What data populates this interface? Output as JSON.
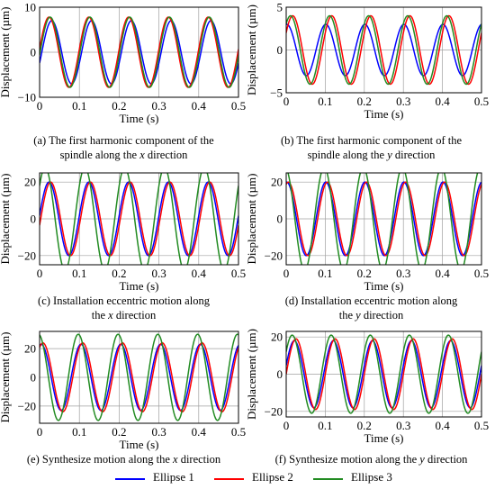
{
  "legend": [
    {
      "name": "Ellipse 1",
      "color": "#0000ff"
    },
    {
      "name": "Ellipse 2",
      "color": "#ff0000"
    },
    {
      "name": "Ellipse 3",
      "color": "#228b22"
    }
  ],
  "captions": [
    {
      "line1": "(a) The first harmonic component of the",
      "line2_pre": "spindle along the ",
      "line2_ital": "x",
      "line2_post": " direction"
    },
    {
      "line1": "(b) The first harmonic component of the",
      "line2_pre": "spindle along the ",
      "line2_ital": "y",
      "line2_post": " direction"
    },
    {
      "line1": "(c) Installation eccentric motion along",
      "line2_pre": "the ",
      "line2_ital": "x",
      "line2_post": " direction"
    },
    {
      "line1": "(d) Installation eccentric motion along",
      "line2_pre": "the ",
      "line2_ital": "y",
      "line2_post": " direction"
    },
    {
      "line1": "",
      "line2_pre": "(e) Synthesize motion along the ",
      "line2_ital": "x",
      "line2_post": " direction"
    },
    {
      "line1": "",
      "line2_pre": "(f) Synthesize motion along the ",
      "line2_ital": "y",
      "line2_post": " direction"
    }
  ],
  "chart_data": [
    {
      "type": "line",
      "id": "a",
      "xlabel": "Time (s)",
      "ylabel": "Displacement (µm)",
      "xlim": [
        0,
        0.5
      ],
      "ylim": [
        -10,
        10
      ],
      "xticks": [
        "0",
        "0.1",
        "0.2",
        "0.3",
        "0.4",
        "0.5"
      ],
      "yticks": [
        "-10",
        "0",
        "10"
      ],
      "grid": true,
      "frequency_hz": 10,
      "series": [
        {
          "name": "Ellipse 1",
          "amplitude": 7.0,
          "phase_deg": -20
        },
        {
          "name": "Ellipse 2",
          "amplitude": 7.8,
          "phase_deg": 5
        },
        {
          "name": "Ellipse 3",
          "amplitude": 7.8,
          "phase_deg": -5
        }
      ]
    },
    {
      "type": "line",
      "id": "b",
      "xlabel": "Time (s)",
      "ylabel": "Displacement (µm)",
      "xlim": [
        0,
        0.5
      ],
      "ylim": [
        -5,
        5
      ],
      "xticks": [
        "0",
        "0.1",
        "0.2",
        "0.3",
        "0.4",
        "0.5"
      ],
      "yticks": [
        "-5",
        "0",
        "5"
      ],
      "grid": true,
      "frequency_hz": 10,
      "series": [
        {
          "name": "Ellipse 1",
          "amplitude": 3.0,
          "phase_deg": 85
        },
        {
          "name": "Ellipse 2",
          "amplitude": 4.0,
          "phase_deg": 30
        },
        {
          "name": "Ellipse 3",
          "amplitude": 4.0,
          "phase_deg": 50
        }
      ]
    },
    {
      "type": "line",
      "id": "c",
      "xlabel": "Time (s)",
      "ylabel": "Displacement (µm)",
      "xlim": [
        0,
        0.5
      ],
      "ylim": [
        -25,
        25
      ],
      "xticks": [
        "0",
        "0.1",
        "0.2",
        "0.3",
        "0.4",
        "0.5"
      ],
      "yticks": [
        "-20",
        "0",
        "20"
      ],
      "grid": true,
      "frequency_hz": 10,
      "series": [
        {
          "name": "Ellipse 1",
          "amplitude": 20,
          "phase_deg": 5
        },
        {
          "name": "Ellipse 2",
          "amplitude": 20,
          "phase_deg": -10
        },
        {
          "name": "Ellipse 3",
          "amplitude": 28,
          "phase_deg": 40
        }
      ]
    },
    {
      "type": "line",
      "id": "d",
      "xlabel": "Time (s)",
      "ylabel": "Displacement (µm)",
      "xlim": [
        0,
        0.5
      ],
      "ylim": [
        -25,
        25
      ],
      "xticks": [
        "0",
        "0.1",
        "0.2",
        "0.3",
        "0.4",
        "0.5"
      ],
      "yticks": [
        "-20",
        "0",
        "20"
      ],
      "grid": true,
      "frequency_hz": 10,
      "series": [
        {
          "name": "Ellipse 1",
          "amplitude": 20,
          "phase_deg": 85
        },
        {
          "name": "Ellipse 2",
          "amplitude": 20,
          "phase_deg": 70
        },
        {
          "name": "Ellipse 3",
          "amplitude": 28,
          "phase_deg": 100
        }
      ]
    },
    {
      "type": "line",
      "id": "e",
      "xlabel": "Time (s)",
      "ylabel": "Displacement (µm)",
      "xlim": [
        0,
        0.5
      ],
      "ylim": [
        -32,
        32
      ],
      "xticks": [
        "0",
        "0.1",
        "0.2",
        "0.3",
        "0.4",
        "0.5"
      ],
      "yticks": [
        "-20",
        "0",
        "20"
      ],
      "grid": true,
      "frequency_hz": 10,
      "series": [
        {
          "name": "Ellipse 1",
          "amplitude": 23,
          "phase_deg": 75
        },
        {
          "name": "Ellipse 2",
          "amplitude": 24,
          "phase_deg": 60
        },
        {
          "name": "Ellipse 3",
          "amplitude": 30,
          "phase_deg": 100
        }
      ]
    },
    {
      "type": "line",
      "id": "f",
      "xlabel": "Time (s)",
      "ylabel": "Displacement (µm)",
      "xlim": [
        0,
        0.5
      ],
      "ylim": [
        -23,
        23
      ],
      "xticks": [
        "0",
        "0.1",
        "0.2",
        "0.3",
        "0.4",
        "0.5"
      ],
      "yticks": [
        "-20",
        "0",
        "20"
      ],
      "grid": true,
      "frequency_hz": 10,
      "series": [
        {
          "name": "Ellipse 1",
          "amplitude": 18,
          "phase_deg": 15
        },
        {
          "name": "Ellipse 2",
          "amplitude": 19,
          "phase_deg": 0
        },
        {
          "name": "Ellipse 3",
          "amplitude": 21,
          "phase_deg": 35
        }
      ]
    }
  ]
}
